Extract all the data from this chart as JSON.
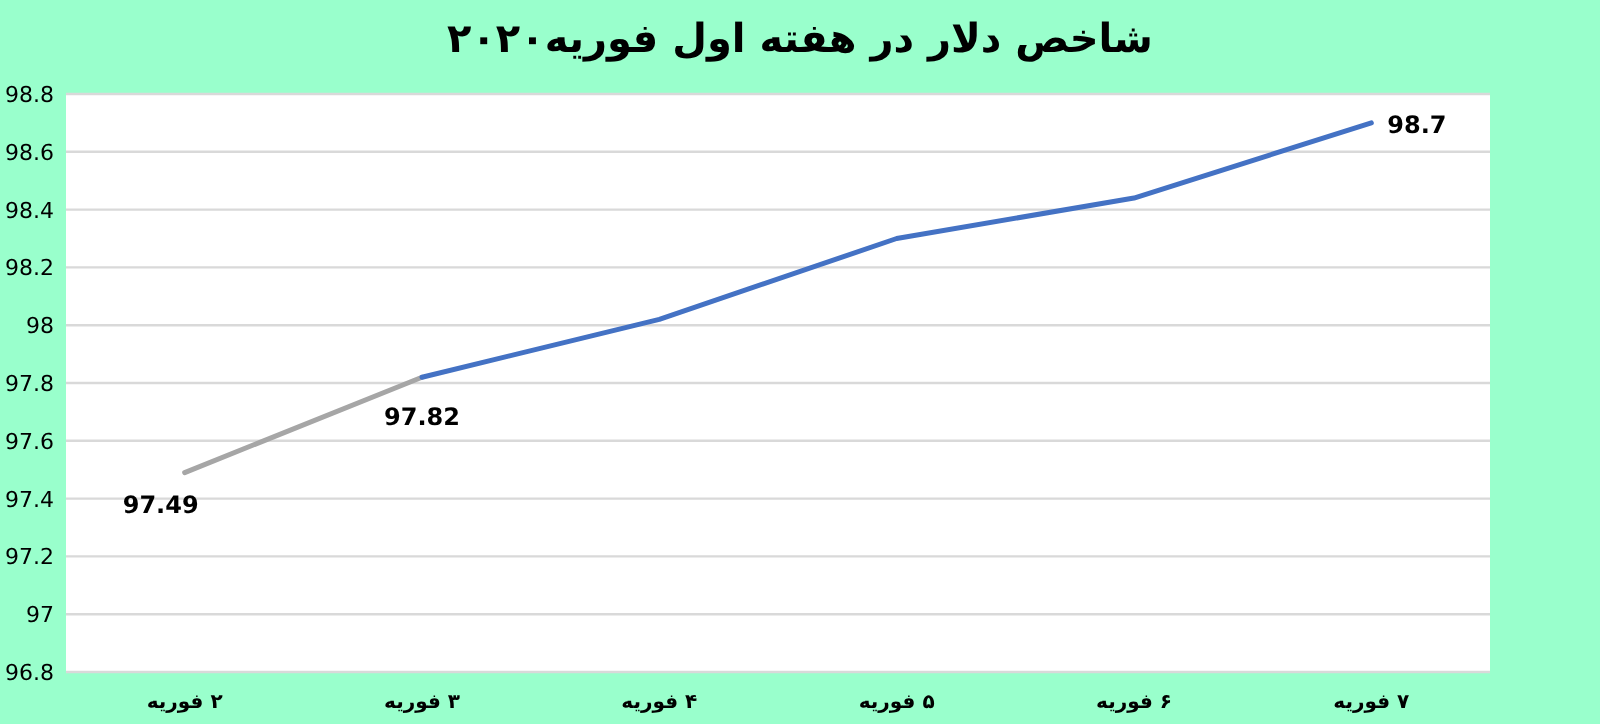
{
  "chart_data": {
    "type": "line",
    "title": "شاخص دلار در هفته اول فوریه۲۰۲۰",
    "categories": [
      "۲ فوریه",
      "۳ فوریه",
      "۴ فوریه",
      "۵ فوریه",
      "۶ فوریه",
      "۷ فوریه"
    ],
    "series": [
      {
        "color": "#a6a6a6",
        "values": [
          97.49,
          97.82,
          null,
          null,
          null,
          null
        ],
        "value_labels": [
          "97.49",
          null,
          null,
          null,
          null,
          null
        ]
      },
      {
        "color": "#4472c4",
        "values": [
          null,
          97.82,
          98.02,
          98.3,
          98.44,
          98.7
        ],
        "value_labels": [
          null,
          "97.82",
          null,
          null,
          null,
          "98.7"
        ]
      }
    ],
    "ylim": [
      96.8,
      98.8
    ],
    "yticks": [
      96.8,
      97,
      97.2,
      97.4,
      97.6,
      97.8,
      98,
      98.2,
      98.4,
      98.6,
      98.8
    ],
    "grid": "y",
    "marker": "none",
    "line_style": "solid"
  }
}
